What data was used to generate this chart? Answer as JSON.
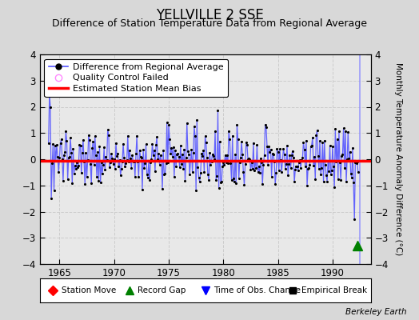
{
  "title": "YELLVILLE 2 SSE",
  "subtitle": "Difference of Station Temperature Data from Regional Average",
  "ylabel": "Monthly Temperature Anomaly Difference (°C)",
  "xlim": [
    1963.2,
    1993.5
  ],
  "ylim": [
    -4,
    4
  ],
  "yticks": [
    -4,
    -3,
    -2,
    -1,
    0,
    1,
    2,
    3,
    4
  ],
  "xticks": [
    1965,
    1970,
    1975,
    1980,
    1985,
    1990
  ],
  "bias_line_y": -0.05,
  "record_gap_x": 1992.25,
  "time_of_obs_change_x": 1992.5,
  "background_color": "#d8d8d8",
  "plot_bg_color": "#e8e8e8",
  "line_color": "#5555ff",
  "dot_color": "#000000",
  "bias_color": "#ff0000",
  "title_fontsize": 12,
  "subtitle_fontsize": 9,
  "tick_fontsize": 8.5,
  "legend_fontsize": 8
}
